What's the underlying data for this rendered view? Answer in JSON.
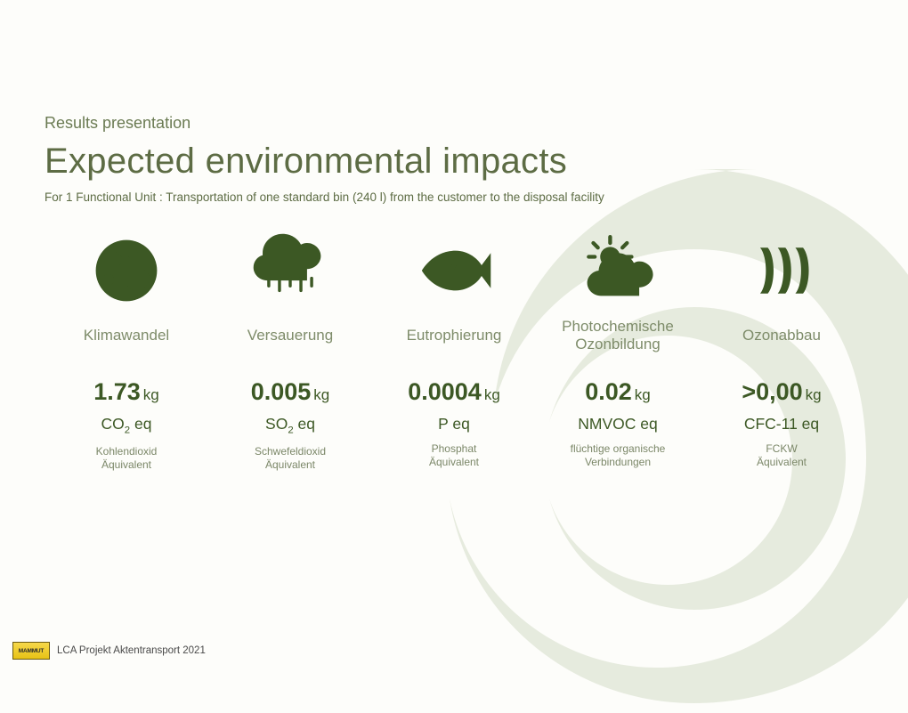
{
  "colors": {
    "icon_fill": "#3c5824",
    "title_color": "#5d6c44",
    "kicker_color": "#6b7b53",
    "category_color": "#7e8c6a",
    "desc_color": "#7b8768",
    "swirl_color": "#b9c6a5",
    "bg": "#fdfdfa"
  },
  "header": {
    "kicker": "Results presentation",
    "title": "Expected environmental impacts",
    "subtitle": "For 1 Functional Unit : Transportation of one standard bin (240 l) from the customer to the disposal facility"
  },
  "impacts": [
    {
      "icon": "globe",
      "category": "Klimawandel",
      "value": "1.73",
      "unit": "kg",
      "metric_html": "CO<sub>2</sub> eq",
      "desc": "Kohlendioxid\nÄquivalent"
    },
    {
      "icon": "rain",
      "category": "Versauerung",
      "value": "0.005",
      "unit": "kg",
      "metric_html": "SO<sub>2</sub> eq",
      "desc": "Schwefeldioxid\nÄquivalent"
    },
    {
      "icon": "fish",
      "category": "Eutrophierung",
      "value": "0.0004",
      "unit": "kg",
      "metric_html": "P eq",
      "desc": "Phosphat\nÄquivalent"
    },
    {
      "icon": "suncloud",
      "category": "Photochemische\nOzonbildung",
      "value": "0.02",
      "unit": "kg",
      "metric_html": "NMVOC eq",
      "desc": "flüchtige organische\nVerbindungen"
    },
    {
      "icon": "waves",
      "category": "Ozonabbau",
      "value": ">0,00",
      "unit": "kg",
      "metric_html": "CFC-11 eq",
      "desc": "FCKW\nÄquivalent"
    }
  ],
  "footer": {
    "badge_text": "MAMMUT",
    "text": "LCA Projekt Aktentransport 2021"
  }
}
